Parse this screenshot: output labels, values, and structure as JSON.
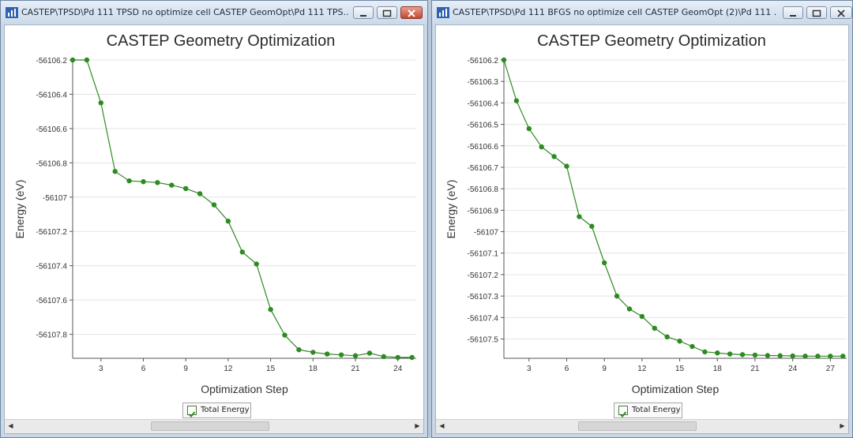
{
  "windows": [
    {
      "title": "CASTEP\\TPSD\\Pd 111 TPSD no optimize cell CASTEP GeomOpt\\Pd 111 TPS...",
      "legend_label": "Total Energy"
    },
    {
      "title": "CASTEP\\TPSD\\Pd 111 BFGS no optimize cell CASTEP GeomOpt (2)\\Pd 111 ...",
      "legend_label": "Total Energy"
    }
  ],
  "colors": {
    "series": "#2e8b22",
    "grid": "#e4e4e4",
    "axis": "#555555"
  },
  "chart_data": [
    {
      "type": "line",
      "title": "CASTEP Geometry Optimization",
      "xlabel": "Optimization Step",
      "ylabel": "Energy (eV)",
      "xlim": [
        1,
        25.3
      ],
      "ylim": [
        -56107.94,
        -56106.2
      ],
      "xticks": [
        3,
        6,
        9,
        12,
        15,
        18,
        21,
        24
      ],
      "yticks": [
        -56106.2,
        -56106.4,
        -56106.6,
        -56106.8,
        -56107,
        -56107.2,
        -56107.4,
        -56107.6,
        -56107.8
      ],
      "grid": true,
      "legend": "bottom-center",
      "series": [
        {
          "name": "Total Energy",
          "x": [
            1,
            2,
            3,
            4,
            5,
            6,
            7,
            8,
            9,
            10,
            11,
            12,
            13,
            14,
            15,
            16,
            17,
            18,
            19,
            20,
            21,
            22,
            23,
            24,
            25
          ],
          "y": [
            -56106.2,
            -56106.2,
            -56106.45,
            -56106.85,
            -56106.905,
            -56106.91,
            -56106.915,
            -56106.93,
            -56106.95,
            -56106.98,
            -56107.045,
            -56107.14,
            -56107.32,
            -56107.39,
            -56107.655,
            -56107.805,
            -56107.89,
            -56107.905,
            -56107.915,
            -56107.92,
            -56107.925,
            -56107.91,
            -56107.93,
            -56107.935,
            -56107.935
          ]
        }
      ]
    },
    {
      "type": "line",
      "title": "CASTEP Geometry Optimization",
      "xlabel": "Optimization Step",
      "ylabel": "Energy (eV)",
      "xlim": [
        1,
        28.3
      ],
      "ylim": [
        -56107.59,
        -56106.2
      ],
      "xticks": [
        3,
        6,
        9,
        12,
        15,
        18,
        21,
        24,
        27
      ],
      "yticks": [
        -56106.2,
        -56106.3,
        -56106.4,
        -56106.5,
        -56106.6,
        -56106.7,
        -56106.8,
        -56106.9,
        -56107,
        -56107.1,
        -56107.2,
        -56107.3,
        -56107.4,
        -56107.5
      ],
      "grid": true,
      "legend": "bottom-center",
      "series": [
        {
          "name": "Total Energy",
          "x": [
            1,
            2,
            3,
            4,
            5,
            6,
            7,
            8,
            9,
            10,
            11,
            12,
            13,
            14,
            15,
            16,
            17,
            18,
            19,
            20,
            21,
            22,
            23,
            24,
            25,
            26,
            27,
            28
          ],
          "y": [
            -56106.2,
            -56106.39,
            -56106.52,
            -56106.605,
            -56106.65,
            -56106.695,
            -56106.93,
            -56106.975,
            -56107.145,
            -56107.3,
            -56107.36,
            -56107.395,
            -56107.45,
            -56107.49,
            -56107.51,
            -56107.535,
            -56107.56,
            -56107.565,
            -56107.57,
            -56107.573,
            -56107.575,
            -56107.577,
            -56107.578,
            -56107.579,
            -56107.58,
            -56107.58,
            -56107.58,
            -56107.58
          ]
        }
      ]
    }
  ]
}
